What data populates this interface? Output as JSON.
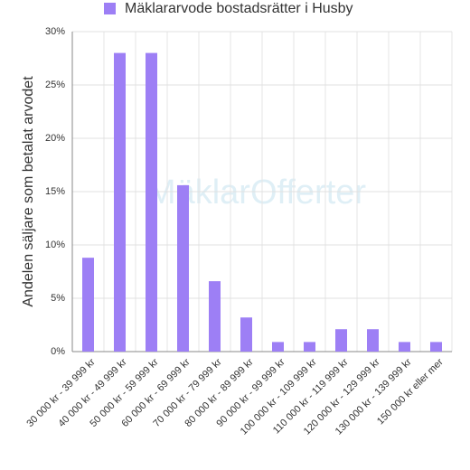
{
  "chart_data": {
    "type": "bar",
    "y_label": "Andelen säljare som betalat arvodet",
    "watermark": "MäklarOfferter",
    "categories": [
      "30 000 kr - 39 999 kr",
      "40 000 kr - 49 999 kr",
      "50 000 kr - 59 999 kr",
      "60 000 kr - 69 999 kr",
      "70 000 kr - 79 999 kr",
      "80 000 kr - 89 999 kr",
      "90 000 kr - 99 999 kr",
      "100 000 kr - 109 999 kr",
      "110 000 kr - 119 999 kr",
      "120 000 kr - 129 999 kr",
      "130 000 kr - 139 999 kr",
      "150 000 kr eller mer"
    ],
    "series": [
      {
        "name": "Mäklararvode bostadsrätter i Husby",
        "color": "#9d7ff5",
        "values": [
          8.8,
          28.0,
          28.0,
          15.6,
          6.6,
          3.2,
          0.9,
          0.9,
          2.1,
          2.1,
          0.9,
          0.9
        ]
      }
    ],
    "ylim": [
      0,
      30
    ],
    "yticks": [
      {
        "value": 0,
        "label": "0%"
      },
      {
        "value": 5,
        "label": "5%"
      },
      {
        "value": 10,
        "label": "10%"
      },
      {
        "value": 15,
        "label": "15%"
      },
      {
        "value": 20,
        "label": "20%"
      },
      {
        "value": 25,
        "label": "25%"
      },
      {
        "value": 30,
        "label": "30%"
      }
    ],
    "grid": true,
    "legend": "top"
  }
}
